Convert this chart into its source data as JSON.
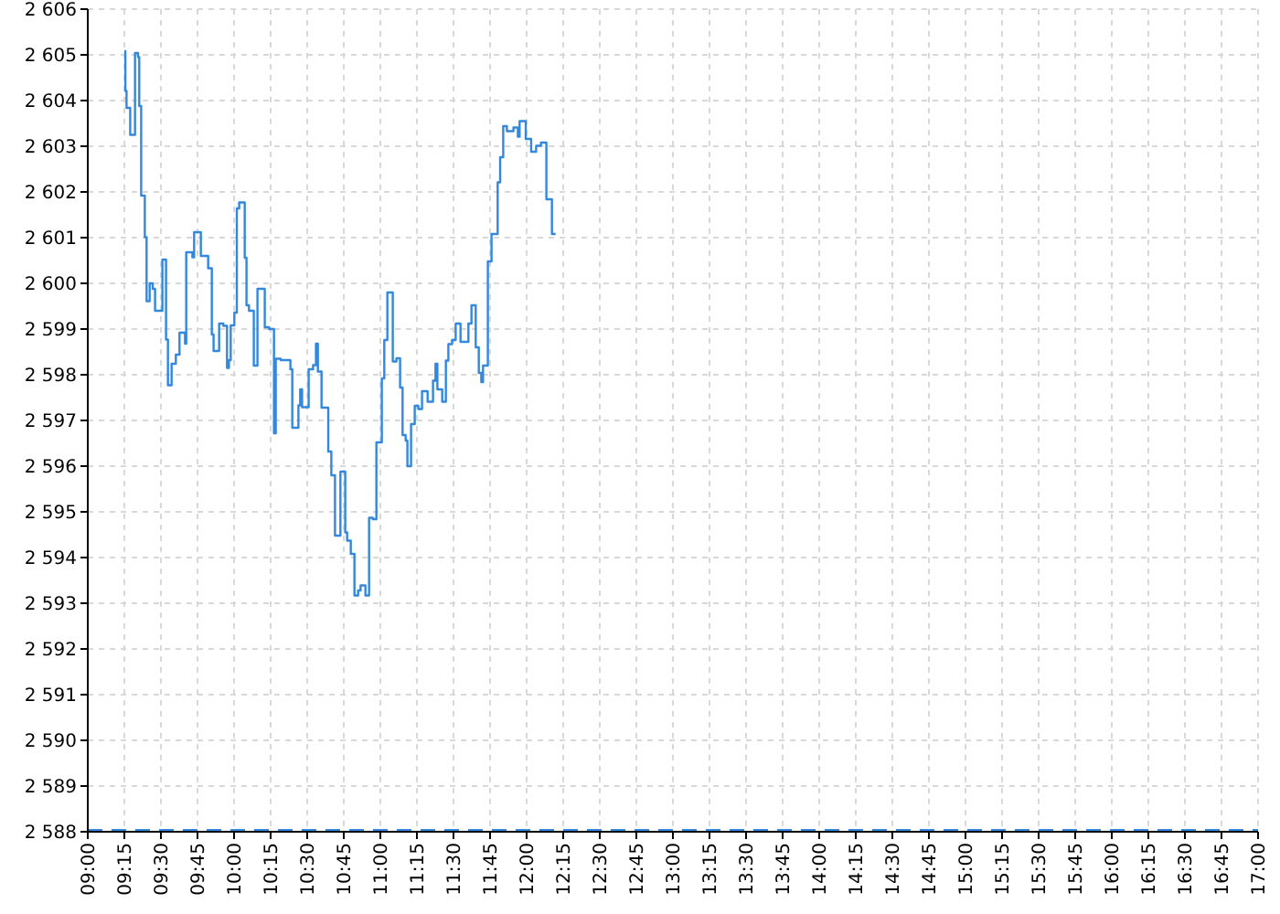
{
  "chart_data": {
    "type": "step",
    "grid": true,
    "line_style": "solid",
    "marker": "none",
    "xlim": [
      9,
      17
    ],
    "xticks": [
      {
        "value": 9,
        "label": "09:00"
      },
      {
        "value": 9.25,
        "label": "09:15"
      },
      {
        "value": 9.5,
        "label": "09:30"
      },
      {
        "value": 9.75,
        "label": "09:45"
      },
      {
        "value": 10,
        "label": "10:00"
      },
      {
        "value": 10.25,
        "label": "10:15"
      },
      {
        "value": 10.5,
        "label": "10:30"
      },
      {
        "value": 10.75,
        "label": "10:45"
      },
      {
        "value": 11,
        "label": "11:00"
      },
      {
        "value": 11.25,
        "label": "11:15"
      },
      {
        "value": 11.5,
        "label": "11:30"
      },
      {
        "value": 11.75,
        "label": "11:45"
      },
      {
        "value": 12,
        "label": "12:00"
      },
      {
        "value": 12.25,
        "label": "12:15"
      },
      {
        "value": 12.5,
        "label": "12:30"
      },
      {
        "value": 12.75,
        "label": "12:45"
      },
      {
        "value": 13,
        "label": "13:00"
      },
      {
        "value": 13.25,
        "label": "13:15"
      },
      {
        "value": 13.5,
        "label": "13:30"
      },
      {
        "value": 13.75,
        "label": "13:45"
      },
      {
        "value": 14,
        "label": "14:00"
      },
      {
        "value": 14.25,
        "label": "14:15"
      },
      {
        "value": 14.5,
        "label": "14:30"
      },
      {
        "value": 14.75,
        "label": "14:45"
      },
      {
        "value": 15,
        "label": "15:00"
      },
      {
        "value": 15.25,
        "label": "15:15"
      },
      {
        "value": 15.5,
        "label": "15:30"
      },
      {
        "value": 15.75,
        "label": "15:45"
      },
      {
        "value": 16,
        "label": "16:00"
      },
      {
        "value": 16.25,
        "label": "16:15"
      },
      {
        "value": 16.5,
        "label": "16:30"
      },
      {
        "value": 16.75,
        "label": "16:45"
      },
      {
        "value": 17,
        "label": "17:00"
      }
    ],
    "ylim": [
      2588,
      2606
    ],
    "yticks": [
      {
        "value": 2588,
        "label": "2 588"
      },
      {
        "value": 2589,
        "label": "2 589"
      },
      {
        "value": 2590,
        "label": "2 590"
      },
      {
        "value": 2591,
        "label": "2 591"
      },
      {
        "value": 2592,
        "label": "2 592"
      },
      {
        "value": 2593,
        "label": "2 593"
      },
      {
        "value": 2594,
        "label": "2 594"
      },
      {
        "value": 2595,
        "label": "2 595"
      },
      {
        "value": 2596,
        "label": "2 596"
      },
      {
        "value": 2597,
        "label": "2 597"
      },
      {
        "value": 2598,
        "label": "2 598"
      },
      {
        "value": 2599,
        "label": "2 599"
      },
      {
        "value": 2600,
        "label": "2 600"
      },
      {
        "value": 2601,
        "label": "2 601"
      },
      {
        "value": 2602,
        "label": "2 602"
      },
      {
        "value": 2603,
        "label": "2 603"
      },
      {
        "value": 2604,
        "label": "2 604"
      },
      {
        "value": 2605,
        "label": "2 605"
      },
      {
        "value": 2606,
        "label": "2 606"
      }
    ],
    "ref_lines": [
      {
        "axis": "y",
        "value": 2588,
        "color": "#3388dd",
        "line_style": "dashed"
      }
    ],
    "series": [
      {
        "color": "#3388dd",
        "x": [
          9.25,
          9.257,
          9.265,
          9.29,
          9.323,
          9.344,
          9.352,
          9.365,
          9.39,
          9.402,
          9.423,
          9.444,
          9.46,
          9.51,
          9.535,
          9.548,
          9.573,
          9.602,
          9.627,
          9.665,
          9.673,
          9.715,
          9.727,
          9.773,
          9.823,
          9.848,
          9.86,
          9.898,
          9.927,
          9.952,
          9.965,
          9.977,
          10.002,
          10.019,
          10.035,
          10.073,
          10.085,
          10.102,
          10.135,
          10.16,
          10.21,
          10.24,
          10.273,
          10.285,
          10.319,
          10.385,
          10.398,
          10.44,
          10.452,
          10.465,
          10.51,
          10.54,
          10.56,
          10.573,
          10.598,
          10.644,
          10.665,
          10.69,
          10.727,
          10.76,
          10.773,
          10.798,
          10.823,
          10.848,
          10.865,
          10.898,
          10.923,
          10.948,
          10.973,
          11.01,
          11.027,
          11.048,
          11.085,
          11.11,
          11.135,
          11.152,
          11.173,
          11.185,
          11.21,
          11.235,
          11.26,
          11.285,
          11.323,
          11.36,
          11.377,
          11.39,
          11.423,
          11.448,
          11.465,
          11.49,
          11.515,
          11.548,
          11.602,
          11.623,
          11.652,
          11.673,
          11.69,
          11.702,
          11.735,
          11.76,
          11.802,
          11.819,
          11.84,
          11.865,
          11.91,
          11.94,
          11.952,
          11.994,
          12.031,
          12.065,
          12.098,
          12.135,
          12.173,
          12.198
        ],
        "values": [
          2605.08,
          2604.21,
          2603.84,
          2603.25,
          2605.04,
          2604.95,
          2603.88,
          2601.92,
          2601.01,
          2599.61,
          2600.0,
          2599.88,
          2599.4,
          2600.52,
          2598.77,
          2597.77,
          2598.24,
          2598.44,
          2598.92,
          2598.68,
          2600.68,
          2600.57,
          2601.12,
          2600.6,
          2600.33,
          2598.88,
          2598.52,
          2599.12,
          2599.07,
          2598.15,
          2598.32,
          2599.08,
          2599.36,
          2601.64,
          2601.77,
          2600.56,
          2599.52,
          2599.4,
          2598.2,
          2599.88,
          2599.04,
          2599.0,
          2596.72,
          2598.35,
          2598.32,
          2598.12,
          2596.84,
          2597.33,
          2597.68,
          2597.29,
          2598.12,
          2598.21,
          2598.68,
          2598.07,
          2597.28,
          2596.32,
          2595.8,
          2594.48,
          2595.88,
          2594.55,
          2594.37,
          2594.08,
          2593.17,
          2593.28,
          2593.39,
          2593.17,
          2594.87,
          2594.84,
          2596.52,
          2597.92,
          2598.76,
          2599.8,
          2598.29,
          2598.36,
          2597.72,
          2596.68,
          2596.56,
          2596.0,
          2596.92,
          2597.32,
          2597.25,
          2597.64,
          2597.41,
          2597.87,
          2598.24,
          2597.68,
          2597.41,
          2598.31,
          2598.67,
          2598.76,
          2599.12,
          2598.72,
          2599.12,
          2599.52,
          2598.6,
          2598.04,
          2597.84,
          2598.2,
          2600.48,
          2601.08,
          2602.21,
          2602.76,
          2603.44,
          2603.33,
          2603.41,
          2603.21,
          2603.55,
          2603.16,
          2602.88,
          2603.01,
          2603.08,
          2601.84,
          2601.08,
          2601.08
        ]
      }
    ]
  }
}
